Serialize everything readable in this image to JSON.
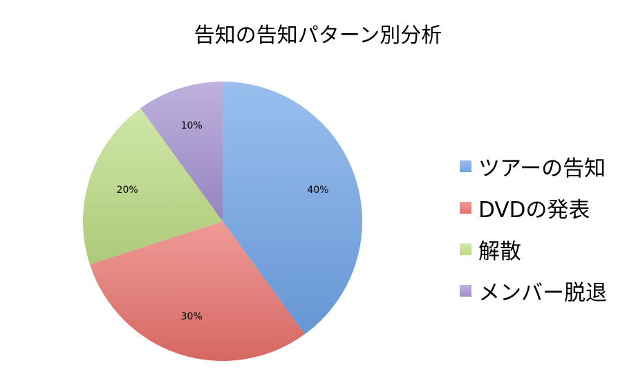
{
  "chart_data": {
    "type": "pie",
    "title": "告知の告知パターン別分析",
    "categories": [
      "ツアーの告知",
      "DVDの発表",
      "解散",
      "メンバー脱退"
    ],
    "values": [
      40,
      30,
      20,
      10
    ],
    "value_labels": [
      "40%",
      "30%",
      "20%",
      "10%"
    ],
    "colors": [
      "#6fa3e6",
      "#e8706a",
      "#bcdc82",
      "#a28fcf"
    ],
    "legend_position": "right"
  }
}
